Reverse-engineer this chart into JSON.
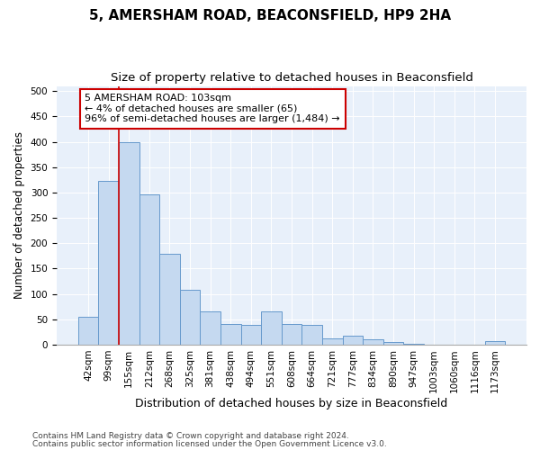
{
  "title1": "5, AMERSHAM ROAD, BEACONSFIELD, HP9 2HA",
  "title2": "Size of property relative to detached houses in Beaconsfield",
  "xlabel": "Distribution of detached houses by size in Beaconsfield",
  "ylabel": "Number of detached properties",
  "categories": [
    "42sqm",
    "99sqm",
    "155sqm",
    "212sqm",
    "268sqm",
    "325sqm",
    "381sqm",
    "438sqm",
    "494sqm",
    "551sqm",
    "608sqm",
    "664sqm",
    "721sqm",
    "777sqm",
    "834sqm",
    "890sqm",
    "947sqm",
    "1003sqm",
    "1060sqm",
    "1116sqm",
    "1173sqm"
  ],
  "values": [
    54,
    322,
    400,
    297,
    179,
    108,
    65,
    41,
    38,
    65,
    40,
    38,
    13,
    18,
    10,
    5,
    1,
    0,
    0,
    0,
    6
  ],
  "bar_color": "#c5d9f0",
  "bar_edge_color": "#6699cc",
  "vline_color": "#cc0000",
  "vline_pos": 1.5,
  "annotation_text": "5 AMERSHAM ROAD: 103sqm\n← 4% of detached houses are smaller (65)\n96% of semi-detached houses are larger (1,484) →",
  "annotation_box_color": "#ffffff",
  "annotation_box_edge": "#cc0000",
  "ylim": [
    0,
    510
  ],
  "yticks": [
    0,
    50,
    100,
    150,
    200,
    250,
    300,
    350,
    400,
    450,
    500
  ],
  "background_color": "#e8f0fa",
  "footer1": "Contains HM Land Registry data © Crown copyright and database right 2024.",
  "footer2": "Contains public sector information licensed under the Open Government Licence v3.0.",
  "title1_fontsize": 11,
  "title2_fontsize": 9.5,
  "xlabel_fontsize": 9,
  "ylabel_fontsize": 8.5,
  "tick_fontsize": 7.5,
  "annotation_fontsize": 8,
  "footer_fontsize": 6.5
}
